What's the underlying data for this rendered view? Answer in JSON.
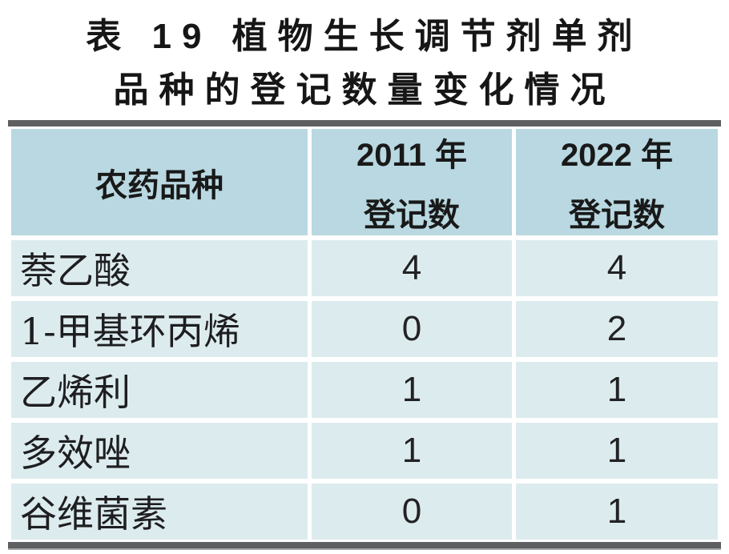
{
  "caption": {
    "line1": "表 19 植物生长调节剂单剂",
    "line2": "品种的登记数量变化情况"
  },
  "header": {
    "col1": "农药品种",
    "col2_line1": "2011 年",
    "col2_line2": "登记数",
    "col3_line1": "2022 年",
    "col3_line2": "登记数"
  },
  "chart_data": {
    "type": "table",
    "title": "表 19 植物生长调节剂单剂品种的登记数量变化情况",
    "columns": [
      "农药品种",
      "2011 年登记数",
      "2022 年登记数"
    ],
    "rows": [
      [
        "萘乙酸",
        4,
        4
      ],
      [
        "1-甲基环丙烯",
        0,
        2
      ],
      [
        "乙烯利",
        1,
        1
      ],
      [
        "多效唑",
        1,
        1
      ],
      [
        "谷维菌素",
        0,
        1
      ]
    ]
  },
  "colors": {
    "header_cell_bg": "#b9d8e1",
    "body_cell_bg": "#dcebee",
    "rule": "#5e5f61",
    "text": "#1d1d1f"
  }
}
